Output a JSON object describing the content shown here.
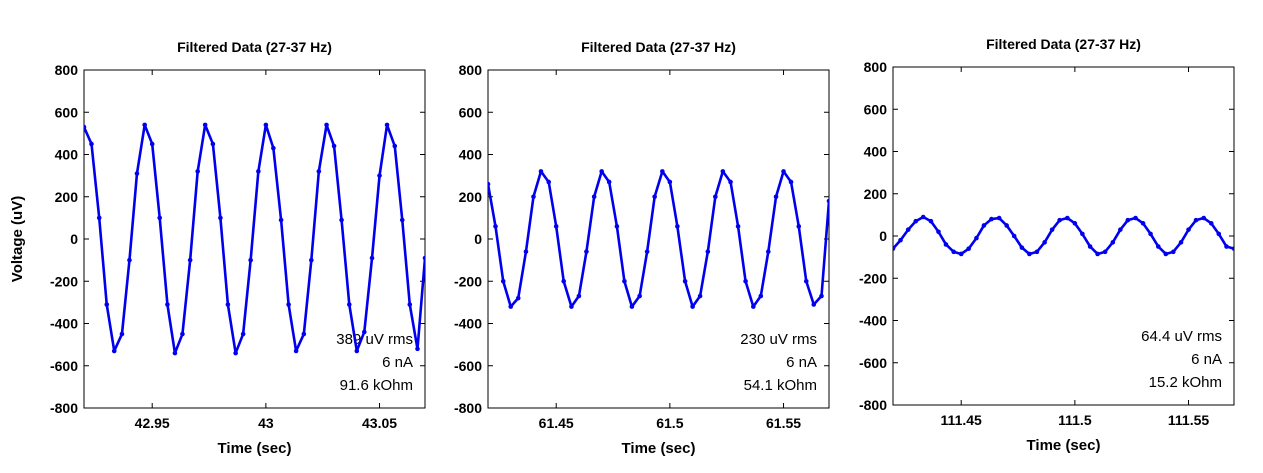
{
  "chart_data": [
    {
      "type": "line",
      "title": "Filtered Data (27-37 Hz)",
      "xlabel": "Time (sec)",
      "ylabel": "Voltage (uV)",
      "xlim": [
        42.92,
        43.07
      ],
      "ylim": [
        -800,
        800
      ],
      "xticks": [
        42.95,
        43,
        43.05
      ],
      "xtick_labels": [
        "42.95",
        "43",
        "43.05"
      ],
      "yticks": [
        800,
        600,
        400,
        200,
        0,
        -200,
        -400,
        -600,
        -800
      ],
      "color": "#0000ee",
      "grid": false,
      "annotations": [
        "389 uV rms",
        "6 nA",
        "91.6 kOhm"
      ],
      "series": [
        {
          "x": [
            42.92,
            42.9233,
            42.9267,
            42.93,
            42.9333,
            42.9367,
            42.94,
            42.9433,
            42.9467,
            42.95,
            42.9533,
            42.9567,
            42.96,
            42.9633,
            42.9667,
            42.97,
            42.9733,
            42.9767,
            42.98,
            42.9833,
            42.9867,
            42.99,
            42.9933,
            42.9967,
            43.0,
            43.0033,
            43.0067,
            43.01,
            43.0133,
            43.0167,
            43.02,
            43.0233,
            43.0267,
            43.03,
            43.0333,
            43.0367,
            43.04,
            43.0433,
            43.0467,
            43.05,
            43.0533,
            43.0567,
            43.06,
            43.0633,
            43.0667,
            43.07
          ],
          "y": [
            530,
            450,
            100,
            -310,
            -530,
            -450,
            -100,
            310,
            540,
            450,
            100,
            -310,
            -540,
            -450,
            -100,
            320,
            540,
            450,
            100,
            -310,
            -540,
            -450,
            -100,
            320,
            540,
            430,
            90,
            -310,
            -530,
            -450,
            -100,
            320,
            540,
            440,
            90,
            -310,
            -530,
            -440,
            -90,
            300,
            540,
            440,
            90,
            -310,
            -520,
            -90
          ]
        }
      ]
    },
    {
      "type": "line",
      "title": "Filtered Data (27-37 Hz)",
      "xlabel": "Time (sec)",
      "ylabel": "",
      "xlim": [
        61.42,
        61.57
      ],
      "ylim": [
        -800,
        800
      ],
      "xticks": [
        61.45,
        61.5,
        61.55
      ],
      "xtick_labels": [
        "61.45",
        "61.5",
        "61.55"
      ],
      "yticks": [
        800,
        600,
        400,
        200,
        0,
        -200,
        -400,
        -600,
        -800
      ],
      "color": "#0000ee",
      "grid": false,
      "annotations": [
        "230 uV rms",
        "6 nA",
        "54.1 kOhm"
      ],
      "series": [
        {
          "x": [
            61.42,
            61.4233,
            61.4267,
            61.43,
            61.4333,
            61.4367,
            61.44,
            61.4433,
            61.4467,
            61.45,
            61.4533,
            61.4567,
            61.46,
            61.4633,
            61.4667,
            61.47,
            61.4733,
            61.4767,
            61.48,
            61.4833,
            61.4867,
            61.49,
            61.4933,
            61.4967,
            61.5,
            61.5033,
            61.5067,
            61.51,
            61.5133,
            61.5167,
            61.52,
            61.5233,
            61.5267,
            61.53,
            61.5333,
            61.5367,
            61.54,
            61.5433,
            61.5467,
            61.55,
            61.5533,
            61.5567,
            61.56,
            61.5633,
            61.5667,
            61.57
          ],
          "y": [
            260,
            60,
            -200,
            -320,
            -280,
            -60,
            200,
            320,
            270,
            60,
            -200,
            -320,
            -270,
            -60,
            200,
            320,
            270,
            60,
            -200,
            -320,
            -270,
            -60,
            200,
            320,
            270,
            60,
            -200,
            -320,
            -270,
            -60,
            200,
            320,
            270,
            60,
            -200,
            -320,
            -270,
            -60,
            200,
            320,
            270,
            60,
            -200,
            -310,
            -270,
            180
          ]
        }
      ]
    },
    {
      "type": "line",
      "title": "Filtered Data (27-37 Hz)",
      "xlabel": "Time (sec)",
      "ylabel": "",
      "xlim": [
        111.42,
        111.57
      ],
      "ylim": [
        -800,
        800
      ],
      "xticks": [
        111.45,
        111.5,
        111.55
      ],
      "xtick_labels": [
        "111.45",
        "111.5",
        "111.55"
      ],
      "yticks": [
        800,
        600,
        400,
        200,
        0,
        -200,
        -400,
        -600,
        -800
      ],
      "color": "#0000ee",
      "grid": false,
      "annotations": [
        "64.4 uV rms",
        "6 nA",
        "15.2 kOhm"
      ],
      "series": [
        {
          "x": [
            111.42,
            111.4233,
            111.4267,
            111.43,
            111.4333,
            111.4367,
            111.44,
            111.4433,
            111.4467,
            111.45,
            111.4533,
            111.4567,
            111.46,
            111.4633,
            111.4667,
            111.47,
            111.4733,
            111.4767,
            111.48,
            111.4833,
            111.4867,
            111.49,
            111.4933,
            111.4967,
            111.5,
            111.5033,
            111.5067,
            111.51,
            111.5133,
            111.5167,
            111.52,
            111.5233,
            111.5267,
            111.53,
            111.5333,
            111.5367,
            111.54,
            111.5433,
            111.5467,
            111.55,
            111.5533,
            111.5567,
            111.56,
            111.5633,
            111.5667,
            111.57
          ],
          "y": [
            -60,
            -20,
            30,
            70,
            90,
            70,
            20,
            -40,
            -75,
            -85,
            -60,
            -10,
            50,
            80,
            85,
            50,
            0,
            -55,
            -85,
            -75,
            -30,
            30,
            75,
            85,
            60,
            10,
            -50,
            -85,
            -75,
            -30,
            30,
            75,
            85,
            60,
            10,
            -50,
            -85,
            -75,
            -30,
            30,
            75,
            85,
            60,
            10,
            -50,
            -60
          ]
        }
      ]
    }
  ]
}
